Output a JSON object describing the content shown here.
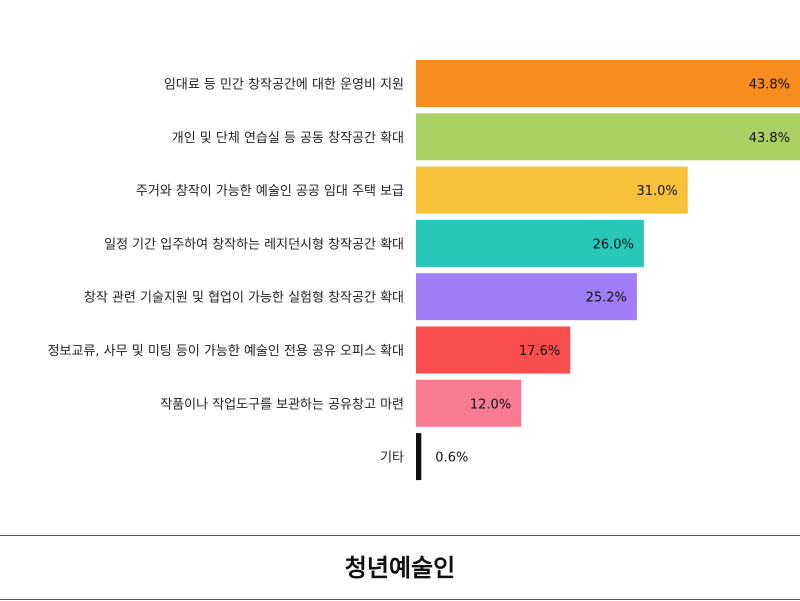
{
  "chart_data": {
    "type": "bar",
    "orientation": "horizontal",
    "categories": [
      "임대료 등 민간 창작공간에 대한 운영비 지원",
      "개인 및 단체 연습실 등 공동 창작공간 확대",
      "주거와 창작이 가능한 예술인 공공 임대 주택 보급",
      "일정 기간 입주하여 창작하는 레지던시형 창작공간 확대",
      "창작 관련 기술지원 및 협업이 가능한 실험형 창작공간 확대",
      "정보교류, 사무 및 미팅 등이 가능한 예술인 전용 공유 오피스 확대",
      "작품이나 작업도구를 보관하는 공유창고 마련",
      "기타"
    ],
    "values": [
      43.8,
      43.8,
      31.0,
      26.0,
      25.2,
      17.6,
      12.0,
      0.6
    ],
    "value_labels": [
      "43.8%",
      "43.8%",
      "31.0%",
      "26.0%",
      "25.2%",
      "17.6%",
      "12.0%",
      "0.6%"
    ],
    "colors": [
      "#f58c1c",
      "#aad063",
      "#f8c13a",
      "#26c6b9",
      "#a17ef7",
      "#fa4d4f",
      "#f77c92",
      "#111111"
    ],
    "xlim": [
      0,
      43.8
    ],
    "grid": false,
    "legend": "none"
  },
  "footer": {
    "title": "청년예술인"
  }
}
